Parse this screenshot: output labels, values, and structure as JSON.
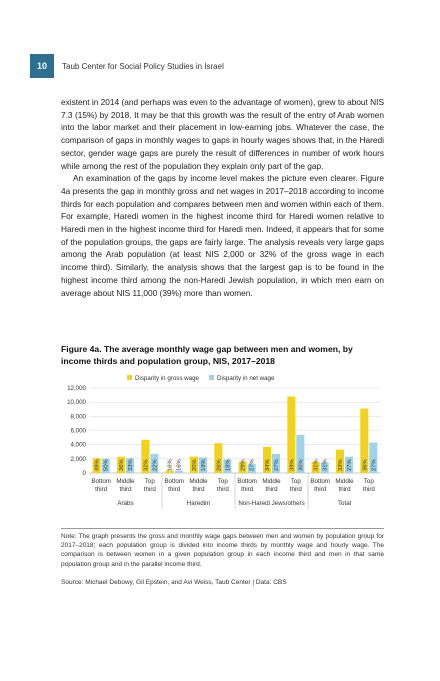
{
  "header": {
    "page_number": "10",
    "running_head": "Taub Center for Social Policy Studies in Israel"
  },
  "body": {
    "p1": "existent in 2014 (and perhaps was even to the advantage of women), grew to about NIS 7.3 (15%) by 2018. It may be that this growth was the result of the entry of Arab women into the labor market and their placement in low-earning jobs. Whatever the case, the comparison of gaps in monthly wages to gaps in hourly wages shows that, in the Haredi sector, gender wage gaps are purely the result of differences in number of work hours while among the rest of the population they explain only part of the gap.",
    "p2": "An examination of the gaps by income level makes the picture even clearer. Figure 4a presents the gap in monthly gross and net wages in 2017–2018 according to income thirds for each population and compares between men and women within each of them. For example, Haredi women in the highest income third for Haredi women relative to Haredi men in the highest income third for Haredi men. Indeed, it appears that for some of the population groups, the gaps are fairly large. The analysis reveals very large gaps among the Arab population (at least NIS 2,000 or 32% of the gross wage in each income third). Similarly, the analysis shows that the largest gap is to be found in the highest income third among the non-Haredi Jewish population, in which men earn on average about NIS 11,000 (39%) more than women."
  },
  "figure": {
    "title": "Figure 4a. The average monthly wage gap between men and women, by income thirds and population group, NIS, 2017–2018"
  },
  "chart_data": {
    "type": "bar",
    "legend": [
      "Disparity in gross wage",
      "Disparity in net wage"
    ],
    "legend_position": "top-center",
    "colors": {
      "gross": "#f2d21d",
      "net": "#9fd3ea"
    },
    "ylim": [
      0,
      12000
    ],
    "yticks": [
      "0",
      "2,000",
      "4,000",
      "6,000",
      "8,000",
      "10,000",
      "12,000"
    ],
    "grid": true,
    "groups": [
      "Arabs",
      "Haredim",
      "Non-Haredi Jews/others",
      "Total"
    ],
    "thirds": [
      [
        "Bottom",
        "third"
      ],
      [
        "Middle",
        "third"
      ],
      [
        "Top",
        "third"
      ]
    ],
    "series": [
      {
        "name": "Disparity in gross wage",
        "values": [
          2100,
          2300,
          4700,
          350,
          2300,
          4200,
          1600,
          3700,
          10800,
          1600,
          3300,
          9100
        ],
        "labels": [
          "49%",
          "36%",
          "32%",
          "16%",
          "20%",
          "26%",
          "29%",
          "34%",
          "39%",
          "31%",
          "33%",
          "36%"
        ]
      },
      {
        "name": "Disparity in net wage",
        "values": [
          2000,
          2100,
          2700,
          300,
          2200,
          1900,
          1300,
          2700,
          5400,
          1500,
          2300,
          4300
        ],
        "labels": [
          "50%",
          "33%",
          "22%",
          "16%",
          "19%",
          "18%",
          "27%",
          "27%",
          "30%",
          "31%",
          "27%",
          "27%"
        ]
      }
    ]
  },
  "note": "Note: The graph presents the gross and monthly wage gaps between men and women by population group for 2017–2018; each population group is divided into income thirds by monthly wage and hourly wage. The comparison is between women in a given population group in each income third and men in that same population group and in the parallel income third.",
  "source": "Source: Michael Debowy, Gil Epstein, and Avi Weiss, Taub Center | Data: CBS"
}
